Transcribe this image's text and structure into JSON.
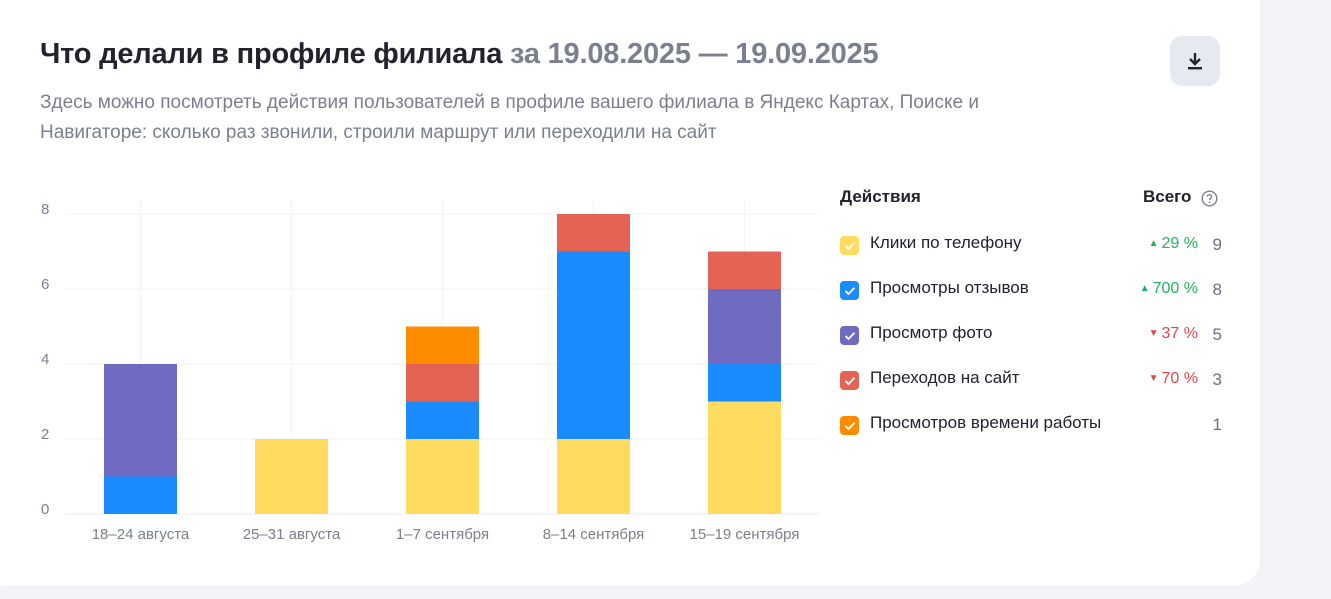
{
  "header": {
    "title": "Что делали в профиле филиала",
    "period": "за 19.08.2025 — 19.09.2025",
    "subtitle": "Здесь можно посмотреть действия пользователей в профиле вашего филиала в Яндекс Картах, Поиске и Навигаторе: сколько раз звонили, строили маршрут или переходили на сайт"
  },
  "toolbar": {
    "download_icon": "download-icon"
  },
  "legend": {
    "actions_header": "Действия",
    "total_header": "Всего",
    "help_icon": "help-icon",
    "items": [
      {
        "label": "Клики по телефону",
        "change": "29 %",
        "direction": "up",
        "total": "9",
        "color": "#ffdc60"
      },
      {
        "label": "Просмотры отзывов",
        "change": "700 %",
        "direction": "up",
        "total": "8",
        "color": "#1a8cff"
      },
      {
        "label": "Просмотр фото",
        "change": "37 %",
        "direction": "down",
        "total": "5",
        "color": "#6e6bc1"
      },
      {
        "label": "Переходов на сайт",
        "change": "70 %",
        "direction": "down",
        "total": "3",
        "color": "#e36354"
      },
      {
        "label": "Просмотров времени работы",
        "change": "",
        "direction": "",
        "total": "1",
        "color": "#ff8c00"
      }
    ]
  },
  "chart_data": {
    "type": "bar",
    "stacked": true,
    "categories": [
      "18–24 августа",
      "25–31 августа",
      "1–7 сентября",
      "8–14 сентября",
      "15–19 сентября"
    ],
    "ylim": [
      0,
      8
    ],
    "yticks": [
      0,
      2,
      4,
      6,
      8
    ],
    "grid": true,
    "legend_position": "right",
    "series": [
      {
        "name": "Клики по телефону",
        "color": "#ffdc60",
        "values": [
          0,
          2,
          2,
          2,
          3
        ]
      },
      {
        "name": "Просмотры отзывов",
        "color": "#1a8cff",
        "values": [
          1,
          0,
          1,
          5,
          1
        ]
      },
      {
        "name": "Просмотр фото",
        "color": "#6e6bc1",
        "values": [
          3,
          0,
          0,
          0,
          2
        ]
      },
      {
        "name": "Переходов на сайт",
        "color": "#e36354",
        "values": [
          0,
          0,
          1,
          1,
          1
        ]
      },
      {
        "name": "Просмотров времени работы",
        "color": "#ff8c00",
        "values": [
          0,
          0,
          1,
          0,
          0
        ]
      }
    ]
  }
}
